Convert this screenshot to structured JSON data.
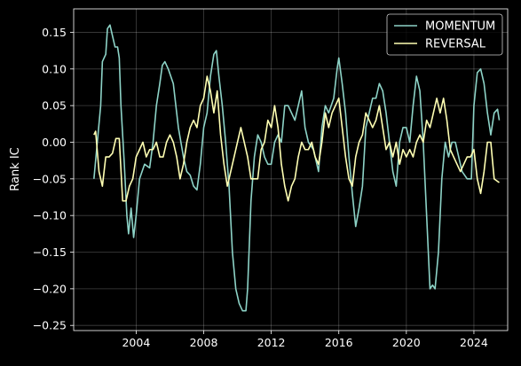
{
  "chart_data": {
    "type": "line",
    "title": "",
    "xlabel": "",
    "ylabel": "Rank IC",
    "xlim": [
      2000.3,
      2026.0
    ],
    "ylim": [
      -0.257,
      0.182
    ],
    "x_ticks": [
      2004,
      2008,
      2012,
      2016,
      2020,
      2024
    ],
    "x_tick_labels": [
      "2004",
      "2008",
      "2012",
      "2016",
      "2020",
      "2024"
    ],
    "y_ticks": [
      -0.25,
      -0.2,
      -0.15,
      -0.1,
      -0.05,
      0.0,
      0.05,
      0.1,
      0.15
    ],
    "y_tick_labels": [
      "−0.25",
      "−0.20",
      "−0.15",
      "−0.10",
      "−0.05",
      "0.00",
      "0.05",
      "0.10",
      "0.15"
    ],
    "grid": true,
    "legend_position": "top-right",
    "series": [
      {
        "name": "MOMENTUM",
        "color": "#8dd3c7",
        "points": [
          [
            2001.5,
            -0.05
          ],
          [
            2001.7,
            0.0
          ],
          [
            2001.9,
            0.05
          ],
          [
            2002.0,
            0.11
          ],
          [
            2002.2,
            0.12
          ],
          [
            2002.3,
            0.155
          ],
          [
            2002.45,
            0.16
          ],
          [
            2002.6,
            0.145
          ],
          [
            2002.75,
            0.13
          ],
          [
            2002.9,
            0.13
          ],
          [
            2003.0,
            0.115
          ],
          [
            2003.1,
            0.05
          ],
          [
            2003.3,
            -0.03
          ],
          [
            2003.45,
            -0.1
          ],
          [
            2003.55,
            -0.125
          ],
          [
            2003.7,
            -0.09
          ],
          [
            2003.85,
            -0.13
          ],
          [
            2004.0,
            -0.1
          ],
          [
            2004.2,
            -0.05
          ],
          [
            2004.5,
            -0.03
          ],
          [
            2004.8,
            -0.035
          ],
          [
            2005.0,
            0.0
          ],
          [
            2005.2,
            0.05
          ],
          [
            2005.4,
            0.08
          ],
          [
            2005.55,
            0.105
          ],
          [
            2005.7,
            0.11
          ],
          [
            2005.9,
            0.1
          ],
          [
            2006.2,
            0.08
          ],
          [
            2006.5,
            0.02
          ],
          [
            2006.8,
            -0.02
          ],
          [
            2007.0,
            -0.04
          ],
          [
            2007.2,
            -0.045
          ],
          [
            2007.4,
            -0.06
          ],
          [
            2007.6,
            -0.065
          ],
          [
            2007.8,
            -0.03
          ],
          [
            2008.0,
            0.02
          ],
          [
            2008.2,
            0.04
          ],
          [
            2008.4,
            0.09
          ],
          [
            2008.6,
            0.12
          ],
          [
            2008.75,
            0.125
          ],
          [
            2008.9,
            0.09
          ],
          [
            2009.1,
            0.05
          ],
          [
            2009.3,
            0.0
          ],
          [
            2009.5,
            -0.06
          ],
          [
            2009.7,
            -0.15
          ],
          [
            2009.9,
            -0.2
          ],
          [
            2010.1,
            -0.22
          ],
          [
            2010.3,
            -0.23
          ],
          [
            2010.5,
            -0.23
          ],
          [
            2010.6,
            -0.2
          ],
          [
            2010.8,
            -0.08
          ],
          [
            2011.0,
            -0.02
          ],
          [
            2011.2,
            0.01
          ],
          [
            2011.4,
            0.0
          ],
          [
            2011.6,
            -0.02
          ],
          [
            2011.8,
            -0.03
          ],
          [
            2012.0,
            -0.03
          ],
          [
            2012.2,
            0.0
          ],
          [
            2012.4,
            0.01
          ],
          [
            2012.6,
            0.0
          ],
          [
            2012.8,
            0.05
          ],
          [
            2013.0,
            0.05
          ],
          [
            2013.2,
            0.04
          ],
          [
            2013.4,
            0.03
          ],
          [
            2013.6,
            0.05
          ],
          [
            2013.8,
            0.07
          ],
          [
            2014.0,
            0.02
          ],
          [
            2014.2,
            0.0
          ],
          [
            2014.5,
            -0.01
          ],
          [
            2014.8,
            -0.04
          ],
          [
            2015.0,
            0.02
          ],
          [
            2015.2,
            0.05
          ],
          [
            2015.4,
            0.04
          ],
          [
            2015.7,
            0.06
          ],
          [
            2015.9,
            0.1
          ],
          [
            2016.0,
            0.115
          ],
          [
            2016.2,
            0.08
          ],
          [
            2016.4,
            0.04
          ],
          [
            2016.6,
            -0.02
          ],
          [
            2016.8,
            -0.07
          ],
          [
            2017.0,
            -0.115
          ],
          [
            2017.2,
            -0.09
          ],
          [
            2017.4,
            -0.06
          ],
          [
            2017.6,
            0.02
          ],
          [
            2017.8,
            0.04
          ],
          [
            2018.0,
            0.06
          ],
          [
            2018.2,
            0.06
          ],
          [
            2018.4,
            0.08
          ],
          [
            2018.6,
            0.07
          ],
          [
            2018.8,
            0.04
          ],
          [
            2019.0,
            0.0
          ],
          [
            2019.2,
            -0.04
          ],
          [
            2019.4,
            -0.06
          ],
          [
            2019.6,
            0.0
          ],
          [
            2019.8,
            0.02
          ],
          [
            2020.0,
            0.02
          ],
          [
            2020.2,
            0.0
          ],
          [
            2020.4,
            0.05
          ],
          [
            2020.6,
            0.09
          ],
          [
            2020.8,
            0.07
          ],
          [
            2021.0,
            0.0
          ],
          [
            2021.2,
            -0.1
          ],
          [
            2021.4,
            -0.2
          ],
          [
            2021.55,
            -0.195
          ],
          [
            2021.7,
            -0.2
          ],
          [
            2021.9,
            -0.15
          ],
          [
            2022.1,
            -0.05
          ],
          [
            2022.3,
            0.0
          ],
          [
            2022.5,
            -0.02
          ],
          [
            2022.7,
            0.0
          ],
          [
            2022.9,
            0.0
          ],
          [
            2023.1,
            -0.02
          ],
          [
            2023.3,
            -0.04
          ],
          [
            2023.6,
            -0.05
          ],
          [
            2023.85,
            -0.05
          ],
          [
            2024.0,
            0.05
          ],
          [
            2024.2,
            0.095
          ],
          [
            2024.4,
            0.1
          ],
          [
            2024.6,
            0.08
          ],
          [
            2024.8,
            0.04
          ],
          [
            2025.0,
            0.01
          ],
          [
            2025.2,
            0.04
          ],
          [
            2025.4,
            0.045
          ],
          [
            2025.5,
            0.03
          ]
        ]
      },
      {
        "name": "REVERSAL",
        "color": "#ffffb3",
        "points": [
          [
            2001.5,
            0.01
          ],
          [
            2001.6,
            0.015
          ],
          [
            2001.8,
            -0.04
          ],
          [
            2002.0,
            -0.06
          ],
          [
            2002.2,
            -0.02
          ],
          [
            2002.4,
            -0.02
          ],
          [
            2002.6,
            -0.015
          ],
          [
            2002.8,
            0.005
          ],
          [
            2003.0,
            0.005
          ],
          [
            2003.2,
            -0.08
          ],
          [
            2003.4,
            -0.08
          ],
          [
            2003.6,
            -0.06
          ],
          [
            2003.8,
            -0.05
          ],
          [
            2004.0,
            -0.02
          ],
          [
            2004.2,
            -0.01
          ],
          [
            2004.4,
            0.0
          ],
          [
            2004.6,
            -0.02
          ],
          [
            2004.8,
            -0.01
          ],
          [
            2005.0,
            -0.01
          ],
          [
            2005.2,
            0.0
          ],
          [
            2005.4,
            -0.02
          ],
          [
            2005.6,
            -0.02
          ],
          [
            2005.8,
            0.0
          ],
          [
            2006.0,
            0.01
          ],
          [
            2006.2,
            0.0
          ],
          [
            2006.4,
            -0.02
          ],
          [
            2006.6,
            -0.05
          ],
          [
            2006.8,
            -0.03
          ],
          [
            2007.0,
            0.0
          ],
          [
            2007.2,
            0.02
          ],
          [
            2007.4,
            0.03
          ],
          [
            2007.6,
            0.02
          ],
          [
            2007.8,
            0.05
          ],
          [
            2008.0,
            0.06
          ],
          [
            2008.2,
            0.09
          ],
          [
            2008.4,
            0.07
          ],
          [
            2008.6,
            0.04
          ],
          [
            2008.8,
            0.07
          ],
          [
            2009.0,
            0.01
          ],
          [
            2009.2,
            -0.03
          ],
          [
            2009.4,
            -0.06
          ],
          [
            2009.6,
            -0.04
          ],
          [
            2009.8,
            -0.02
          ],
          [
            2010.0,
            0.0
          ],
          [
            2010.2,
            0.02
          ],
          [
            2010.4,
            0.0
          ],
          [
            2010.6,
            -0.02
          ],
          [
            2010.8,
            -0.05
          ],
          [
            2011.0,
            -0.05
          ],
          [
            2011.2,
            -0.05
          ],
          [
            2011.4,
            -0.01
          ],
          [
            2011.6,
            0.0
          ],
          [
            2011.8,
            0.03
          ],
          [
            2012.0,
            0.02
          ],
          [
            2012.2,
            0.05
          ],
          [
            2012.4,
            0.02
          ],
          [
            2012.6,
            -0.03
          ],
          [
            2012.8,
            -0.06
          ],
          [
            2013.0,
            -0.08
          ],
          [
            2013.2,
            -0.06
          ],
          [
            2013.4,
            -0.05
          ],
          [
            2013.6,
            -0.02
          ],
          [
            2013.8,
            0.0
          ],
          [
            2014.0,
            -0.01
          ],
          [
            2014.2,
            -0.01
          ],
          [
            2014.4,
            0.0
          ],
          [
            2014.6,
            -0.02
          ],
          [
            2014.8,
            -0.03
          ],
          [
            2015.0,
            0.0
          ],
          [
            2015.2,
            0.04
          ],
          [
            2015.4,
            0.02
          ],
          [
            2015.6,
            0.04
          ],
          [
            2015.8,
            0.05
          ],
          [
            2016.0,
            0.06
          ],
          [
            2016.2,
            0.02
          ],
          [
            2016.4,
            -0.02
          ],
          [
            2016.6,
            -0.05
          ],
          [
            2016.8,
            -0.06
          ],
          [
            2017.0,
            -0.02
          ],
          [
            2017.2,
            0.0
          ],
          [
            2017.4,
            0.01
          ],
          [
            2017.6,
            0.04
          ],
          [
            2017.8,
            0.03
          ],
          [
            2018.0,
            0.02
          ],
          [
            2018.2,
            0.03
          ],
          [
            2018.4,
            0.05
          ],
          [
            2018.6,
            0.02
          ],
          [
            2018.8,
            -0.01
          ],
          [
            2019.0,
            0.0
          ],
          [
            2019.2,
            -0.02
          ],
          [
            2019.4,
            0.0
          ],
          [
            2019.6,
            -0.03
          ],
          [
            2019.8,
            -0.01
          ],
          [
            2020.0,
            -0.02
          ],
          [
            2020.2,
            -0.01
          ],
          [
            2020.4,
            -0.02
          ],
          [
            2020.6,
            0.0
          ],
          [
            2020.8,
            0.01
          ],
          [
            2021.0,
            0.0
          ],
          [
            2021.2,
            0.03
          ],
          [
            2021.4,
            0.02
          ],
          [
            2021.6,
            0.04
          ],
          [
            2021.8,
            0.06
          ],
          [
            2022.0,
            0.04
          ],
          [
            2022.2,
            0.06
          ],
          [
            2022.4,
            0.03
          ],
          [
            2022.6,
            -0.01
          ],
          [
            2022.8,
            -0.02
          ],
          [
            2023.0,
            -0.03
          ],
          [
            2023.2,
            -0.04
          ],
          [
            2023.4,
            -0.03
          ],
          [
            2023.6,
            -0.02
          ],
          [
            2023.8,
            -0.02
          ],
          [
            2024.0,
            -0.01
          ],
          [
            2024.2,
            -0.05
          ],
          [
            2024.4,
            -0.07
          ],
          [
            2024.6,
            -0.04
          ],
          [
            2024.8,
            0.0
          ],
          [
            2025.0,
            0.0
          ],
          [
            2025.2,
            -0.05
          ],
          [
            2025.5,
            -0.055
          ]
        ]
      }
    ]
  }
}
